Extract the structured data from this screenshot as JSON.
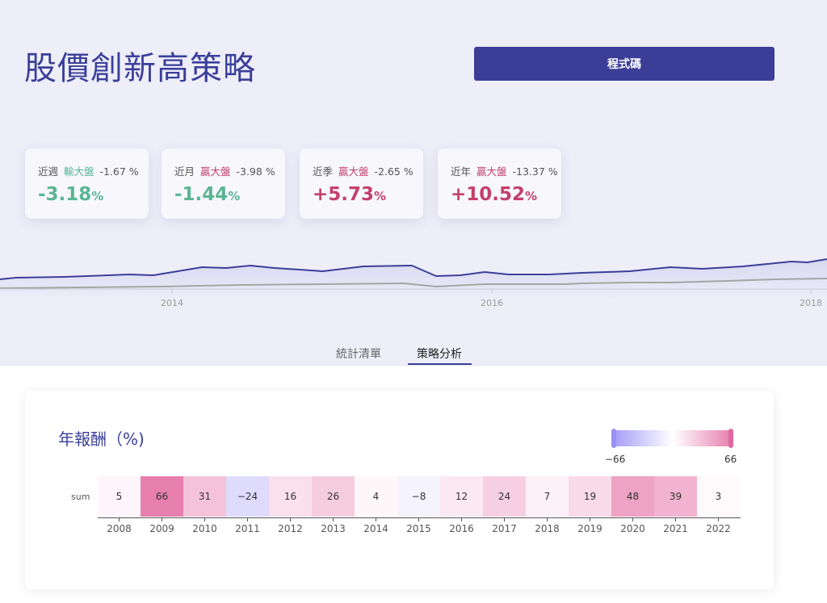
{
  "header": {
    "title": "股價創新高策略",
    "code_button": "程式碼"
  },
  "cards": [
    {
      "period": "近週",
      "tag": "輸大盤",
      "tag_color": "#5bb593",
      "diff": "-1.67 %",
      "value": "-3.18",
      "unit": "%",
      "value_color": "#5bb593"
    },
    {
      "period": "近月",
      "tag": "贏大盤",
      "tag_color": "#c4406b",
      "diff": "-3.98 %",
      "value": "-1.44",
      "unit": "%",
      "value_color": "#5bb593"
    },
    {
      "period": "近季",
      "tag": "贏大盤",
      "tag_color": "#c4406b",
      "diff": "-2.65 %",
      "value": "+5.73",
      "unit": "%",
      "value_color": "#c4406b"
    },
    {
      "period": "近年",
      "tag": "贏大盤",
      "tag_color": "#c4406b",
      "diff": "-13.37 %",
      "value": "+10.52",
      "unit": "%",
      "value_color": "#c4406b"
    }
  ],
  "background_chart": {
    "x_ticks": [
      "2014",
      "2016",
      "2018"
    ],
    "series_colors": [
      "#3b3f99",
      "#a6a6a6"
    ]
  },
  "tabs": [
    {
      "label": "統計清單",
      "active": false
    },
    {
      "label": "策略分析",
      "active": true
    }
  ],
  "heatmap": {
    "title": "年報酬（%)",
    "row_label": "sum",
    "legend_min": "−66",
    "legend_max": "66",
    "color_low": "#a59cf7",
    "color_high": "#e77fae",
    "years": [
      "2008",
      "2009",
      "2010",
      "2011",
      "2012",
      "2013",
      "2014",
      "2015",
      "2016",
      "2017",
      "2018",
      "2019",
      "2020",
      "2021",
      "2022"
    ],
    "values": [
      5,
      66,
      31,
      -24,
      16,
      26,
      4,
      -8,
      12,
      24,
      7,
      19,
      48,
      39,
      3
    ]
  },
  "chart_data": {
    "type": "heatmap",
    "title": "年報酬（%)",
    "rows": [
      "sum"
    ],
    "columns": [
      "2008",
      "2009",
      "2010",
      "2011",
      "2012",
      "2013",
      "2014",
      "2015",
      "2016",
      "2017",
      "2018",
      "2019",
      "2020",
      "2021",
      "2022"
    ],
    "values": [
      [
        5,
        66,
        31,
        -24,
        16,
        26,
        4,
        -8,
        12,
        24,
        7,
        19,
        48,
        39,
        3
      ]
    ],
    "color_range": [
      -66,
      66
    ]
  }
}
